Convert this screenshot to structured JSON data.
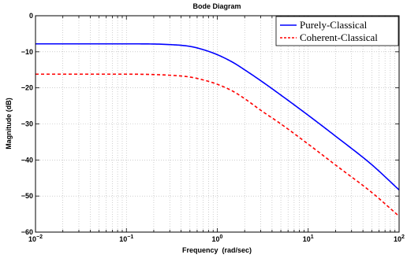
{
  "chart_data": {
    "type": "line",
    "title": "Bode Diagram",
    "xlabel": "Frequency  (rad/sec)",
    "ylabel": "Magnitude (dB)",
    "x_scale": "log",
    "xlim": [
      0.01,
      100
    ],
    "ylim": [
      -60,
      0
    ],
    "x_ticks": [
      0.01,
      0.1,
      1,
      10,
      100
    ],
    "x_tick_labels": [
      {
        "base": "10",
        "exp": "−2"
      },
      {
        "base": "10",
        "exp": "−1"
      },
      {
        "base": "10",
        "exp": "0"
      },
      {
        "base": "10",
        "exp": "1"
      },
      {
        "base": "10",
        "exp": "2"
      }
    ],
    "y_ticks": [
      0,
      -10,
      -20,
      -30,
      -40,
      -50,
      -60
    ],
    "y_tick_labels": [
      "0",
      "−10",
      "−20",
      "−30",
      "−40",
      "−50",
      "−60"
    ],
    "grid": true,
    "legend_position": "top-right",
    "series": [
      {
        "name": "Purely-Classical",
        "color": "#0000ff",
        "style": "solid",
        "x": [
          0.01,
          0.03,
          0.1,
          0.3,
          0.5,
          0.7,
          1,
          1.5,
          2,
          3,
          5,
          10,
          20,
          50,
          100
        ],
        "y": [
          -7.8,
          -7.8,
          -7.8,
          -8.0,
          -8.5,
          -9.4,
          -10.8,
          -13.0,
          -15.0,
          -18.0,
          -22.0,
          -27.6,
          -33.4,
          -41.3,
          -48.3
        ]
      },
      {
        "name": "Coherent-Classical",
        "color": "#ff0000",
        "style": "dashed",
        "x": [
          0.01,
          0.03,
          0.1,
          0.3,
          0.5,
          0.7,
          1,
          1.5,
          2,
          3,
          5,
          10,
          20,
          50,
          100
        ],
        "y": [
          -16.2,
          -16.2,
          -16.2,
          -16.5,
          -17.0,
          -17.8,
          -19.0,
          -21.0,
          -23.0,
          -26.2,
          -30.0,
          -35.6,
          -41.4,
          -49.0,
          -55.6
        ]
      }
    ]
  }
}
